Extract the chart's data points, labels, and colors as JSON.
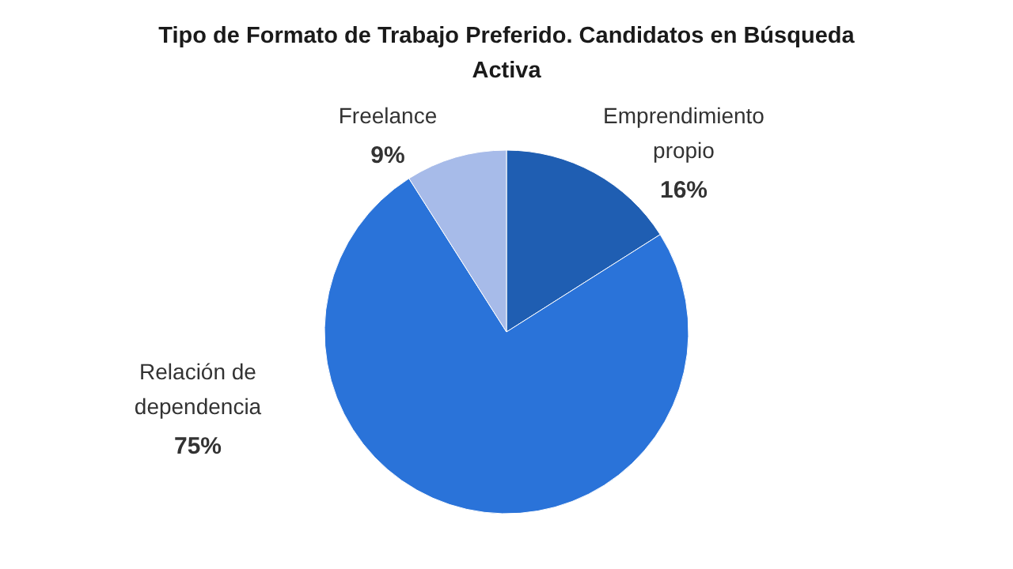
{
  "chart_data": {
    "type": "pie",
    "title": "Tipo de Formato de Trabajo Preferido. Candidatos en Búsqueda Activa",
    "categories": [
      "Emprendimiento propio",
      "Relación de dependencia",
      "Freelance"
    ],
    "values": [
      16,
      75,
      9
    ],
    "colors": [
      "#1f5eb2",
      "#2a73d9",
      "#a7bbe9"
    ],
    "value_labels": [
      "16%",
      "75%",
      "9%"
    ]
  }
}
